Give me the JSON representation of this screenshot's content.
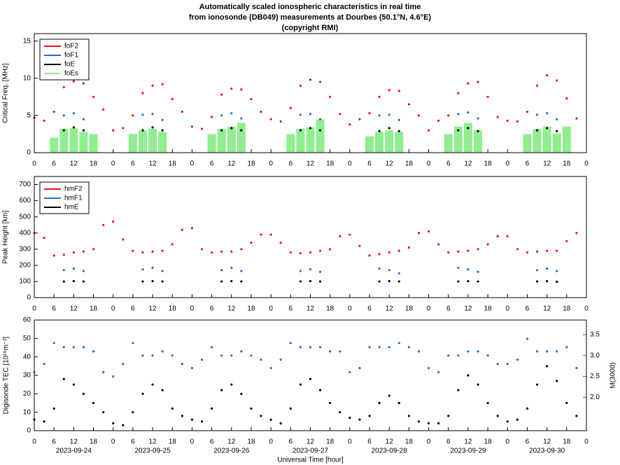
{
  "chart_data": [
    {
      "type": "scatter",
      "title": [
        "Automatically scaled ionospheric characteristics in real time",
        "from ionosonde (DB049) measurements at Dourbes (50.1°N, 4.6°E)",
        "(copyright RMI)"
      ],
      "ylabel": "Critical Freq. [MHz]",
      "ylim": [
        0,
        16
      ],
      "yticks": [
        0,
        5,
        10,
        15
      ],
      "xlim": [
        0,
        168
      ],
      "xticks": [
        0,
        6,
        12,
        18,
        {
          "value": 24,
          "label": "0"
        },
        {
          "value": 30,
          "label": "6"
        },
        {
          "value": 36,
          "label": "12"
        },
        {
          "value": 42,
          "label": "18"
        },
        {
          "value": 48,
          "label": "0"
        },
        {
          "value": 54,
          "label": "6"
        },
        {
          "value": 60,
          "label": "12"
        },
        {
          "value": 66,
          "label": "18"
        },
        {
          "value": 72,
          "label": "0"
        },
        {
          "value": 78,
          "label": "6"
        },
        {
          "value": 84,
          "label": "12"
        },
        {
          "value": 90,
          "label": "18"
        },
        {
          "value": 96,
          "label": "0"
        },
        {
          "value": 102,
          "label": "6"
        },
        {
          "value": 108,
          "label": "12"
        },
        {
          "value": 114,
          "label": "18"
        },
        {
          "value": 120,
          "label": "0"
        },
        {
          "value": 126,
          "label": "6"
        },
        {
          "value": 132,
          "label": "12"
        },
        {
          "value": 138,
          "label": "18"
        },
        {
          "value": 144,
          "label": "0"
        },
        {
          "value": 150,
          "label": "6"
        },
        {
          "value": 156,
          "label": "12"
        },
        {
          "value": 162,
          "label": "18"
        },
        {
          "value": 168,
          "label": "0"
        }
      ],
      "x": [
        0,
        3,
        6,
        9,
        12,
        15,
        18,
        21,
        24,
        27,
        30,
        33,
        36,
        39,
        42,
        45,
        48,
        51,
        54,
        57,
        60,
        63,
        66,
        69,
        72,
        75,
        78,
        81,
        84,
        87,
        90,
        93,
        96,
        99,
        102,
        105,
        108,
        111,
        114,
        117,
        120,
        123,
        126,
        129,
        132,
        135,
        138,
        141,
        144,
        147,
        150,
        153,
        156,
        159,
        162,
        165
      ],
      "series": [
        {
          "name": "foF2",
          "color": "#e8150f",
          "kind": "dot",
          "values": [
            4.7,
            4.3,
            5.5,
            8.8,
            9.6,
            9.3,
            7.5,
            5.8,
            3.0,
            3.3,
            5.0,
            8.0,
            9.0,
            9.2,
            7.2,
            5.5,
            3.5,
            3.2,
            4.8,
            7.8,
            8.6,
            8.5,
            7.2,
            5.5,
            4.5,
            4.2,
            6.0,
            9.0,
            9.8,
            9.5,
            7.5,
            5.2,
            3.8,
            4.5,
            5.3,
            7.5,
            8.4,
            8.3,
            6.5,
            5.0,
            3.0,
            4.3,
            5.0,
            8.0,
            9.3,
            9.5,
            7.5,
            4.8,
            4.3,
            4.2,
            5.5,
            9.0,
            10.4,
            9.7,
            7.3,
            4.6
          ]
        },
        {
          "name": "foF1",
          "color": "#1f6fd6",
          "kind": "dot",
          "values": [
            null,
            null,
            null,
            5.0,
            5.3,
            4.5,
            null,
            null,
            null,
            null,
            null,
            5.1,
            5.2,
            4.4,
            null,
            null,
            null,
            null,
            null,
            5.0,
            5.3,
            4.6,
            null,
            null,
            null,
            null,
            null,
            5.1,
            5.2,
            4.5,
            null,
            null,
            null,
            null,
            null,
            5.0,
            5.1,
            4.4,
            null,
            null,
            null,
            null,
            null,
            5.2,
            5.4,
            4.6,
            null,
            null,
            null,
            null,
            null,
            5.1,
            5.3,
            4.5,
            null,
            null
          ]
        },
        {
          "name": "foE",
          "color": "#000000",
          "kind": "dot",
          "values": [
            null,
            null,
            null,
            3.0,
            3.4,
            3.0,
            null,
            null,
            null,
            null,
            null,
            3.0,
            3.4,
            3.0,
            null,
            null,
            null,
            null,
            null,
            3.0,
            3.3,
            3.0,
            null,
            null,
            null,
            null,
            null,
            3.0,
            3.3,
            3.0,
            null,
            null,
            null,
            null,
            null,
            2.9,
            3.3,
            2.9,
            null,
            null,
            null,
            null,
            null,
            3.0,
            3.3,
            2.9,
            null,
            null,
            null,
            null,
            null,
            3.0,
            3.3,
            2.9,
            null,
            null
          ]
        },
        {
          "name": "foEs",
          "color": "#90ee90",
          "kind": "bar",
          "values": [
            null,
            null,
            2.0,
            3.2,
            3.3,
            2.8,
            2.5,
            null,
            null,
            null,
            2.5,
            3.0,
            3.2,
            2.8,
            null,
            null,
            null,
            null,
            2.5,
            3.2,
            3.5,
            4.0,
            null,
            null,
            null,
            null,
            2.5,
            3.2,
            3.4,
            4.5,
            null,
            null,
            null,
            null,
            2.2,
            2.8,
            3.0,
            2.8,
            null,
            null,
            null,
            null,
            2.5,
            3.5,
            4.0,
            3.0,
            null,
            null,
            null,
            null,
            2.5,
            3.2,
            3.5,
            2.6,
            3.5,
            null
          ]
        }
      ]
    },
    {
      "type": "scatter",
      "ylabel": "Peak Height [km]",
      "ylim": [
        0,
        750
      ],
      "yticks": [
        0,
        100,
        200,
        300,
        400,
        500,
        600,
        700
      ],
      "xlim": [
        0,
        168
      ],
      "xticks": [
        0,
        6,
        12,
        18,
        {
          "value": 24,
          "label": "0"
        },
        {
          "value": 30,
          "label": "6"
        },
        {
          "value": 36,
          "label": "12"
        },
        {
          "value": 42,
          "label": "18"
        },
        {
          "value": 48,
          "label": "0"
        },
        {
          "value": 54,
          "label": "6"
        },
        {
          "value": 60,
          "label": "12"
        },
        {
          "value": 66,
          "label": "18"
        },
        {
          "value": 72,
          "label": "0"
        },
        {
          "value": 78,
          "label": "6"
        },
        {
          "value": 84,
          "label": "12"
        },
        {
          "value": 90,
          "label": "18"
        },
        {
          "value": 96,
          "label": "0"
        },
        {
          "value": 102,
          "label": "6"
        },
        {
          "value": 108,
          "label": "12"
        },
        {
          "value": 114,
          "label": "18"
        },
        {
          "value": 120,
          "label": "0"
        },
        {
          "value": 126,
          "label": "6"
        },
        {
          "value": 132,
          "label": "12"
        },
        {
          "value": 138,
          "label": "18"
        },
        {
          "value": 144,
          "label": "0"
        },
        {
          "value": 150,
          "label": "6"
        },
        {
          "value": 156,
          "label": "12"
        },
        {
          "value": 162,
          "label": "18"
        },
        {
          "value": 168,
          "label": "0"
        }
      ],
      "x": [
        0,
        3,
        6,
        9,
        12,
        15,
        18,
        21,
        24,
        27,
        30,
        33,
        36,
        39,
        42,
        45,
        48,
        51,
        54,
        57,
        60,
        63,
        66,
        69,
        72,
        75,
        78,
        81,
        84,
        87,
        90,
        93,
        96,
        99,
        102,
        105,
        108,
        111,
        114,
        117,
        120,
        123,
        126,
        129,
        132,
        135,
        138,
        141,
        144,
        147,
        150,
        153,
        156,
        159,
        162,
        165
      ],
      "series": [
        {
          "name": "hmF2",
          "color": "#e8150f",
          "kind": "dot",
          "values": [
            400,
            370,
            260,
            265,
            280,
            285,
            300,
            450,
            470,
            360,
            290,
            280,
            285,
            290,
            330,
            420,
            430,
            300,
            280,
            285,
            285,
            300,
            340,
            390,
            390,
            340,
            280,
            275,
            280,
            290,
            300,
            380,
            390,
            320,
            260,
            270,
            280,
            290,
            310,
            400,
            410,
            330,
            280,
            285,
            290,
            300,
            330,
            380,
            380,
            300,
            280,
            285,
            290,
            290,
            350,
            400
          ]
        },
        {
          "name": "hmF1",
          "color": "#1f6fd6",
          "kind": "dot",
          "values": [
            null,
            null,
            null,
            170,
            180,
            165,
            null,
            null,
            null,
            null,
            null,
            175,
            185,
            165,
            null,
            null,
            null,
            null,
            null,
            170,
            185,
            165,
            null,
            null,
            null,
            null,
            null,
            165,
            175,
            160,
            null,
            null,
            null,
            null,
            null,
            180,
            170,
            150,
            null,
            null,
            null,
            null,
            null,
            185,
            175,
            160,
            null,
            null,
            null,
            null,
            null,
            170,
            180,
            165,
            null,
            null
          ]
        },
        {
          "name": "hmE",
          "color": "#000000",
          "kind": "dot",
          "values": [
            null,
            null,
            null,
            100,
            102,
            100,
            null,
            null,
            null,
            null,
            null,
            100,
            102,
            100,
            null,
            null,
            null,
            null,
            null,
            100,
            102,
            100,
            null,
            null,
            null,
            null,
            null,
            100,
            102,
            100,
            null,
            null,
            null,
            null,
            null,
            100,
            102,
            100,
            null,
            null,
            null,
            null,
            null,
            100,
            102,
            100,
            null,
            null,
            null,
            null,
            null,
            100,
            102,
            98,
            null,
            null
          ]
        }
      ]
    },
    {
      "type": "scatter",
      "ylabel": "Digisonde TEC [10¹⁶m⁻²]",
      "y2label": "M(3000)",
      "xlabel": "Universal Time [hour]",
      "ylim": [
        0,
        60
      ],
      "yticks": [
        0,
        10,
        20,
        30,
        40,
        50,
        60
      ],
      "y2lim": [
        1.2,
        3.85
      ],
      "y2ticks": [
        2.0,
        2.5,
        3.0,
        3.5
      ],
      "xlim": [
        0,
        168
      ],
      "xticks": [
        0,
        6,
        12,
        18,
        {
          "value": 24,
          "label": "0"
        },
        {
          "value": 30,
          "label": "6"
        },
        {
          "value": 36,
          "label": "12"
        },
        {
          "value": 42,
          "label": "18"
        },
        {
          "value": 48,
          "label": "0"
        },
        {
          "value": 54,
          "label": "6"
        },
        {
          "value": 60,
          "label": "12"
        },
        {
          "value": 66,
          "label": "18"
        },
        {
          "value": 72,
          "label": "0"
        },
        {
          "value": 78,
          "label": "6"
        },
        {
          "value": 84,
          "label": "12"
        },
        {
          "value": 90,
          "label": "18"
        },
        {
          "value": 96,
          "label": "0"
        },
        {
          "value": 102,
          "label": "6"
        },
        {
          "value": 108,
          "label": "12"
        },
        {
          "value": 114,
          "label": "18"
        },
        {
          "value": 120,
          "label": "0"
        },
        {
          "value": 126,
          "label": "6"
        },
        {
          "value": 132,
          "label": "12"
        },
        {
          "value": 138,
          "label": "18"
        },
        {
          "value": 144,
          "label": "0"
        },
        {
          "value": 150,
          "label": "6"
        },
        {
          "value": 156,
          "label": "12"
        },
        {
          "value": 162,
          "label": "18"
        },
        {
          "value": 168,
          "label": "0"
        }
      ],
      "date_labels": [
        {
          "value": 12,
          "label": "2023-09-24"
        },
        {
          "value": 36,
          "label": "2023-09-25"
        },
        {
          "value": 60,
          "label": "2023-09-26"
        },
        {
          "value": 84,
          "label": "2023-09-27"
        },
        {
          "value": 108,
          "label": "2023-09-28"
        },
        {
          "value": 132,
          "label": "2023-09-29"
        },
        {
          "value": 156,
          "label": "2023-09-30"
        }
      ],
      "x": [
        0,
        3,
        6,
        9,
        12,
        15,
        18,
        21,
        24,
        27,
        30,
        33,
        36,
        39,
        42,
        45,
        48,
        51,
        54,
        57,
        60,
        63,
        66,
        69,
        72,
        75,
        78,
        81,
        84,
        87,
        90,
        93,
        96,
        99,
        102,
        105,
        108,
        111,
        114,
        117,
        120,
        123,
        126,
        129,
        132,
        135,
        138,
        141,
        144,
        147,
        150,
        153,
        156,
        159,
        162,
        165
      ],
      "series": [
        {
          "name": "TEC",
          "color": "#000000",
          "kind": "dot",
          "values": [
            6,
            5,
            12,
            28,
            25,
            20,
            15,
            10,
            4,
            3,
            10,
            20,
            25,
            22,
            12,
            8,
            6,
            5,
            12,
            22,
            25,
            20,
            12,
            8,
            6,
            4,
            12,
            25,
            28,
            22,
            15,
            10,
            7,
            6,
            8,
            15,
            19,
            15,
            8,
            5,
            4,
            4,
            8,
            22,
            30,
            25,
            15,
            8,
            5,
            6,
            12,
            25,
            35,
            27,
            15,
            8
          ]
        },
        {
          "name": "M(3000)",
          "color": "#1f6fd6",
          "kind": "dot",
          "axis": "y2",
          "values": [
            2.6,
            2.8,
            3.3,
            3.2,
            3.2,
            3.2,
            3.1,
            2.6,
            2.5,
            2.8,
            3.3,
            3.0,
            3.0,
            3.1,
            3.0,
            2.8,
            2.7,
            2.9,
            3.2,
            3.0,
            3.0,
            3.1,
            3.0,
            2.9,
            2.7,
            2.9,
            3.3,
            3.2,
            3.2,
            3.2,
            3.1,
            3.1,
            2.6,
            2.7,
            3.2,
            3.2,
            3.2,
            3.3,
            3.2,
            3.1,
            2.7,
            2.6,
            3.0,
            3.0,
            3.1,
            3.1,
            3.0,
            2.8,
            2.8,
            2.9,
            3.4,
            3.1,
            3.1,
            3.1,
            3.2,
            2.7
          ]
        }
      ]
    }
  ]
}
